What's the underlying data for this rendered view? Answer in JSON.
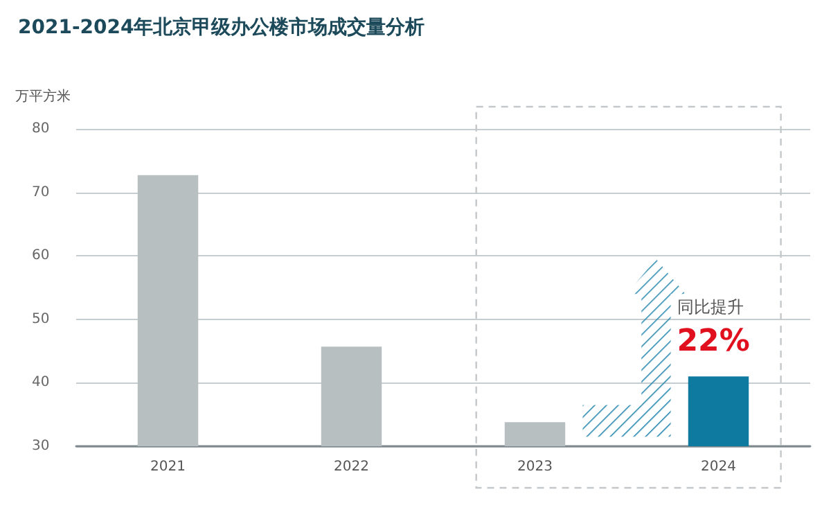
{
  "chart_data": {
    "type": "bar",
    "title": "2021-2024年北京甲级办公楼市场成交量分析",
    "ylabel": "万平方米",
    "categories": [
      "2021",
      "2022",
      "2023",
      "2024"
    ],
    "values": [
      72.7,
      45.7,
      33.8,
      41.0
    ],
    "colors": [
      "#b7bfc1",
      "#b7bfc1",
      "#b7bfc1",
      "#0f7aa0"
    ],
    "ylim": [
      30,
      80
    ],
    "yticks": [
      30,
      40,
      50,
      60,
      70,
      80
    ],
    "grid": "y",
    "annotations": [
      "同比提升",
      "22%"
    ]
  }
}
